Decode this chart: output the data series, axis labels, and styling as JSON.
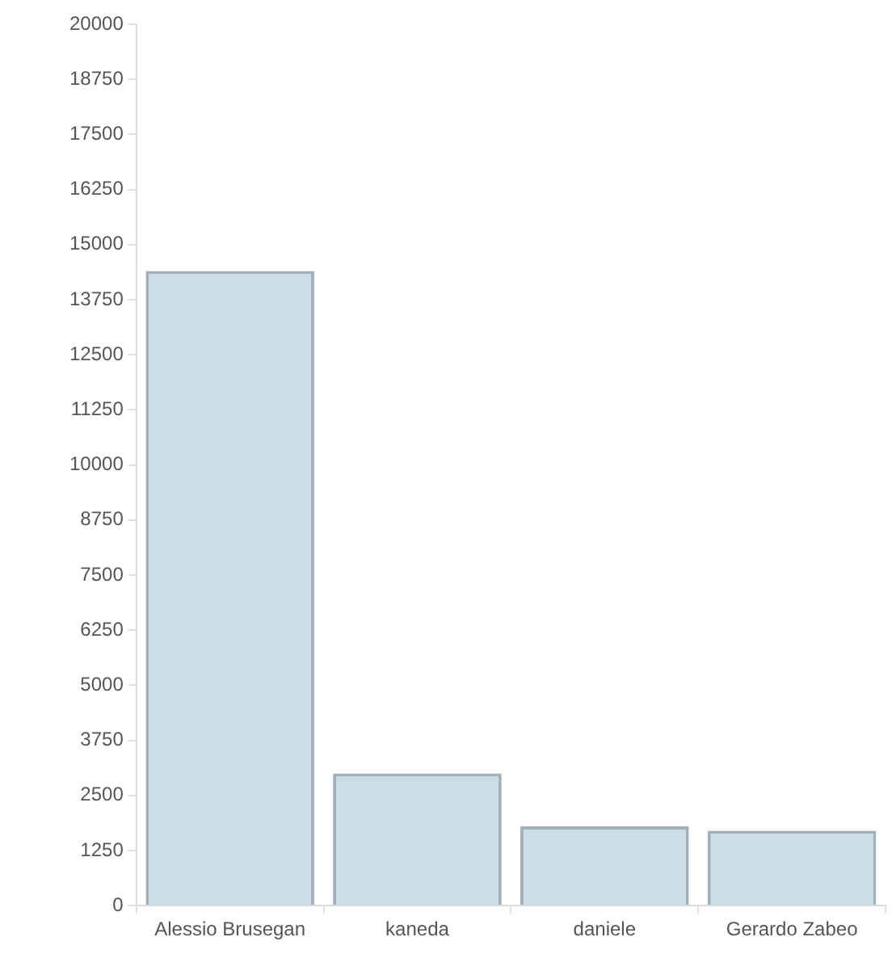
{
  "chart_data": {
    "type": "bar",
    "categories": [
      "Alessio Brusegan",
      "kaneda",
      "daniele",
      "Gerardo Zabeo"
    ],
    "values": [
      14400,
      3000,
      1800,
      1700
    ],
    "color": "#cbdde7",
    "ylim": [
      0,
      20000
    ],
    "yticks": [
      0,
      1250,
      2500,
      3750,
      5000,
      6250,
      7500,
      8750,
      10000,
      11250,
      12500,
      13750,
      15000,
      16250,
      17500,
      18750,
      20000
    ],
    "grid": false,
    "legend": false
  }
}
